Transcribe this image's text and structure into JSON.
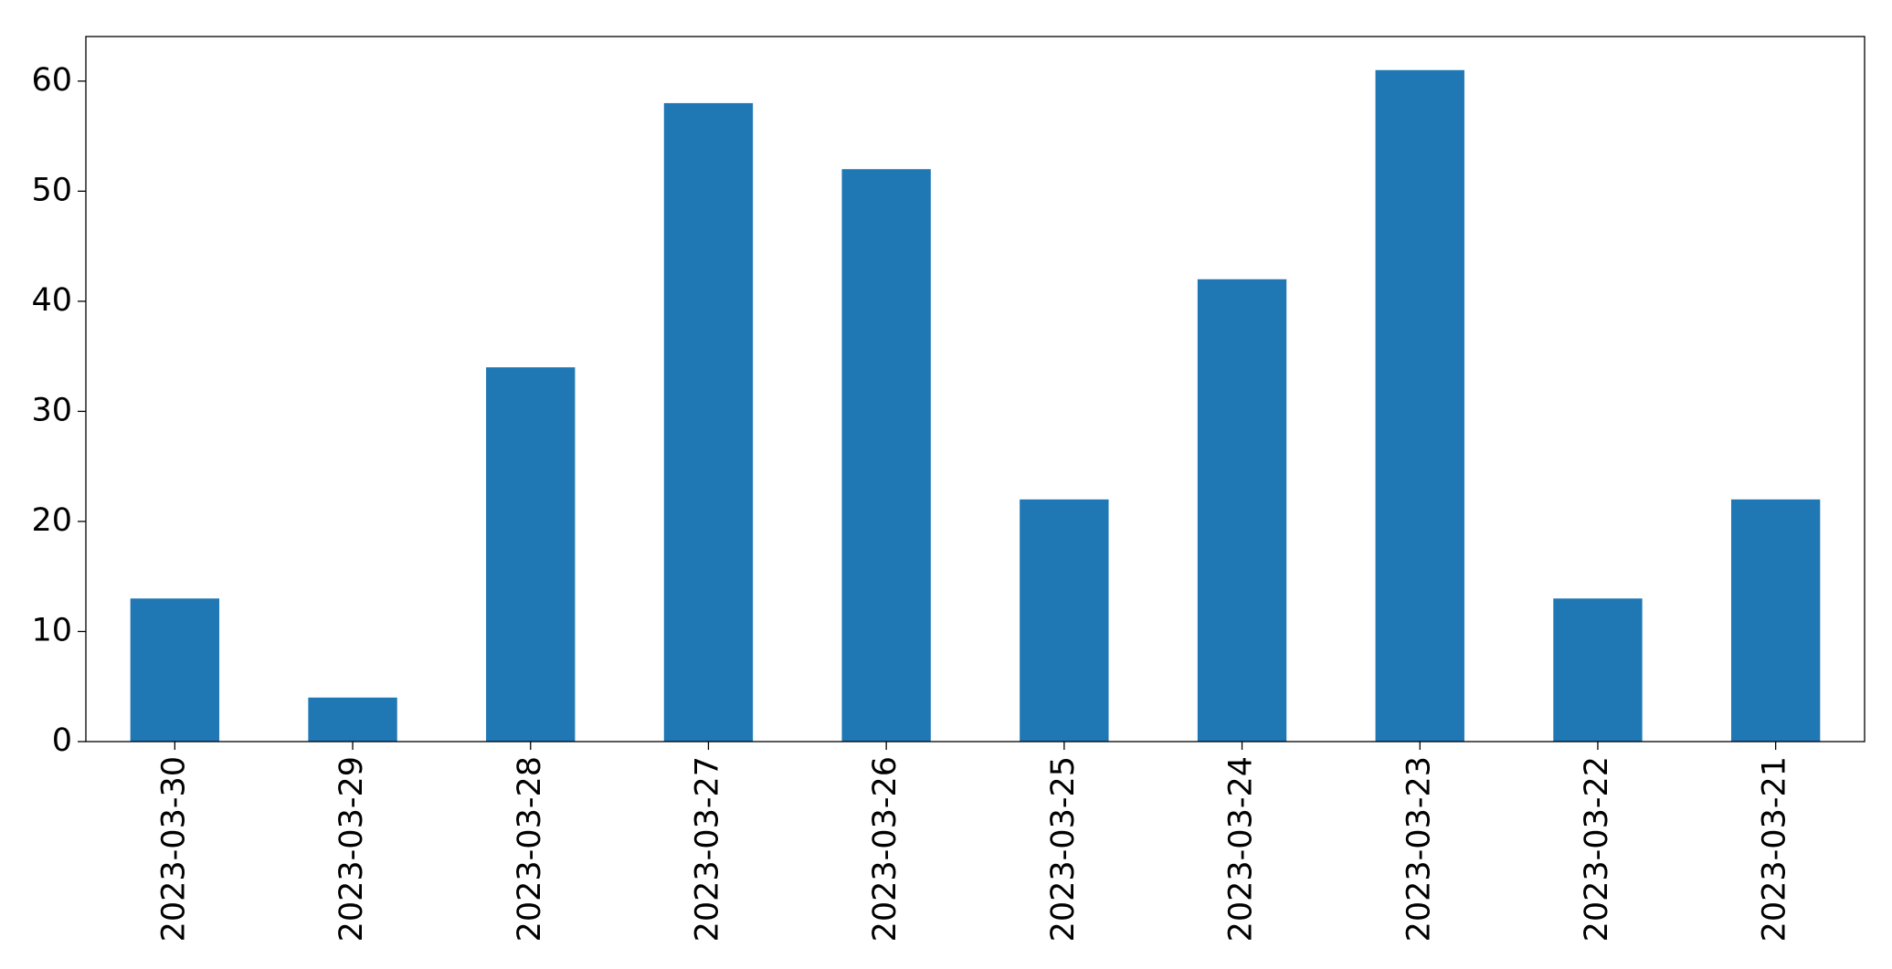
{
  "chart_data": {
    "type": "bar",
    "categories": [
      "2023-03-30",
      "2023-03-29",
      "2023-03-28",
      "2023-03-27",
      "2023-03-26",
      "2023-03-25",
      "2023-03-24",
      "2023-03-23",
      "2023-03-22",
      "2023-03-21"
    ],
    "values": [
      13,
      4,
      34,
      58,
      52,
      22,
      42,
      61,
      13,
      22
    ],
    "color": "#1f77b4",
    "ylim": [
      0,
      64.05
    ],
    "yticks": [
      0,
      10,
      20,
      30,
      40,
      50,
      60
    ],
    "grid": false
  }
}
